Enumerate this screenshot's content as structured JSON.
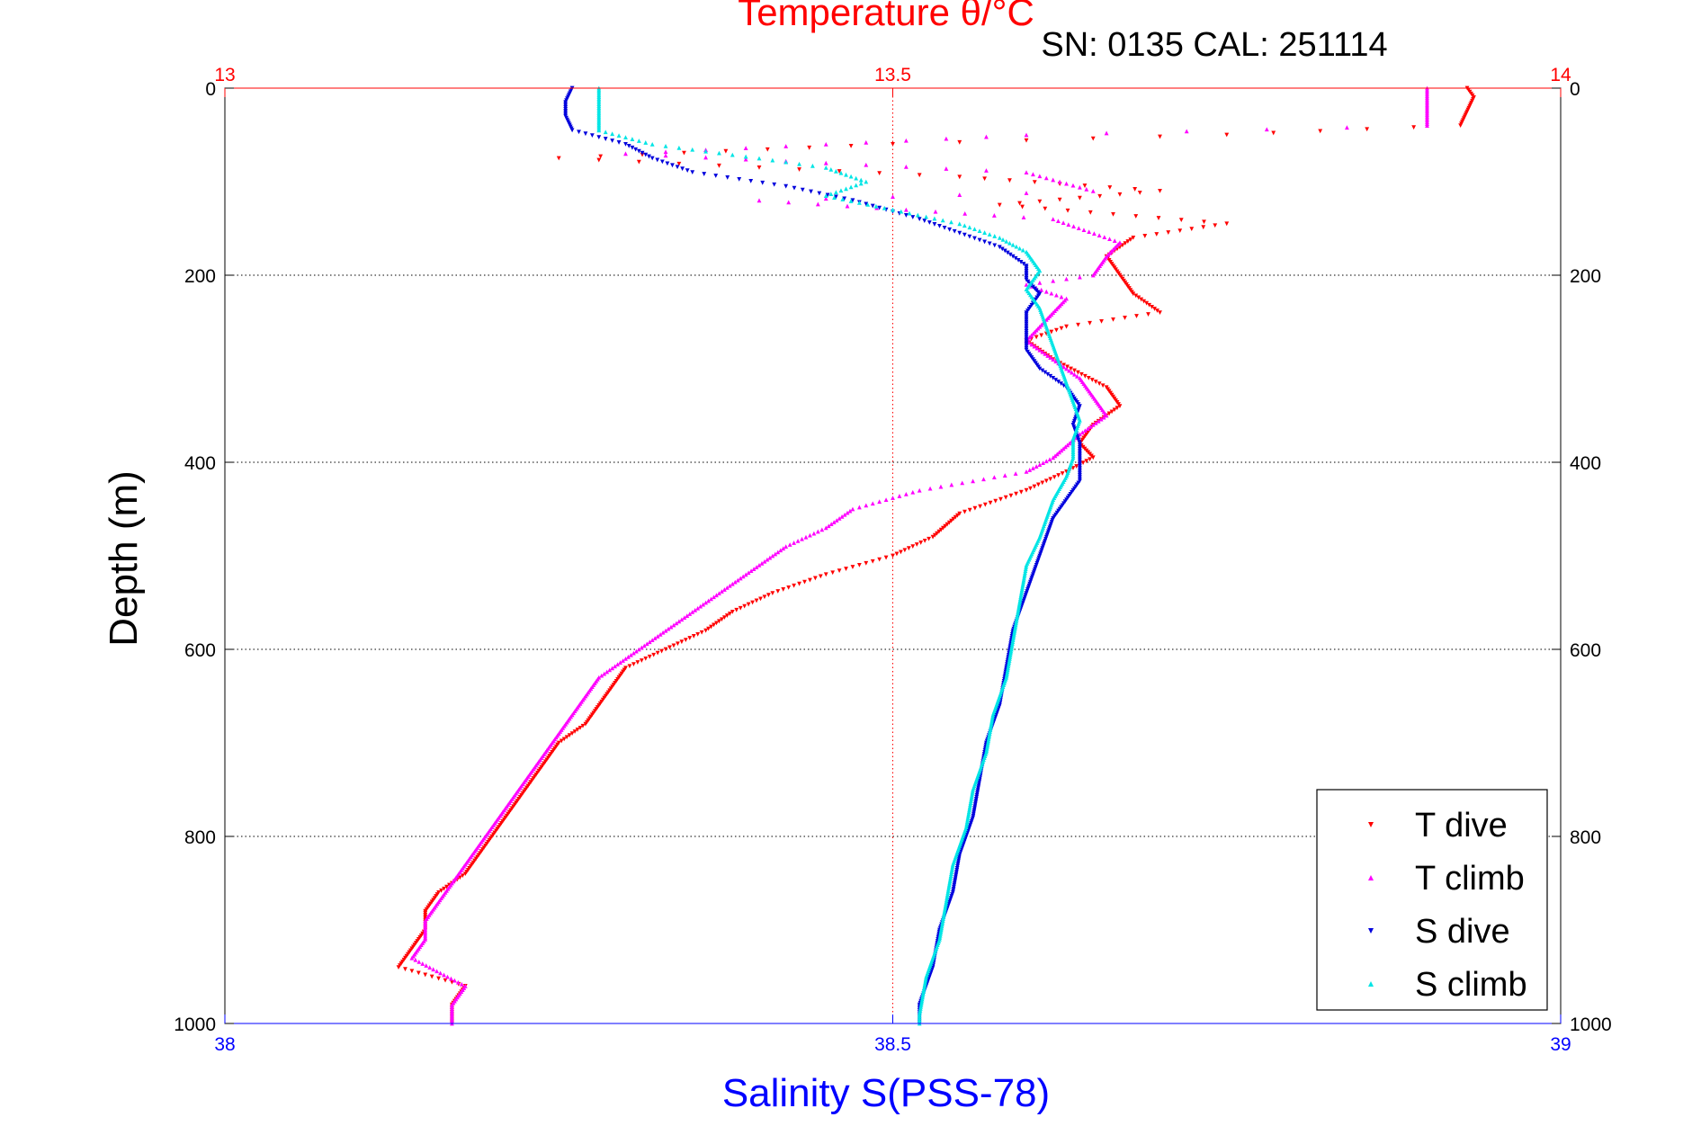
{
  "chart_data": {
    "type": "scatter",
    "title": "Temperature θ/°C",
    "annotation": "SN: 0135  CAL: 251114",
    "xlabel_bottom": "Salinity S(PSS-78)",
    "xlabel_top": "",
    "ylabel": "Depth (m)",
    "ylim": [
      0,
      1000
    ],
    "y_reversed": true,
    "y_ticks": [
      "0",
      "200",
      "400",
      "600",
      "800",
      "1000"
    ],
    "x_top": {
      "lim": [
        13,
        14
      ],
      "ticks": [
        "13",
        "13.5",
        "14"
      ],
      "color": "#ff0000"
    },
    "x_bottom": {
      "lim": [
        38,
        39
      ],
      "ticks": [
        "38",
        "38.5",
        "39"
      ],
      "color": "#0000ff"
    },
    "grid": true,
    "legend": {
      "placement": "bottom-right"
    },
    "series": [
      {
        "name": "T dive",
        "axis": "top",
        "color": "#ff0000",
        "marker": "triangle-down",
        "points": [
          [
            13.93,
            0
          ],
          [
            13.935,
            10
          ],
          [
            13.93,
            25
          ],
          [
            13.925,
            40
          ],
          [
            13.75,
            50
          ],
          [
            13.5,
            60
          ],
          [
            13.25,
            75
          ],
          [
            13.55,
            95
          ],
          [
            13.7,
            110
          ],
          [
            13.58,
            125
          ],
          [
            13.75,
            145
          ],
          [
            13.68,
            160
          ],
          [
            13.66,
            180
          ],
          [
            13.67,
            200
          ],
          [
            13.68,
            220
          ],
          [
            13.7,
            240
          ],
          [
            13.63,
            255
          ],
          [
            13.6,
            270
          ],
          [
            13.62,
            290
          ],
          [
            13.66,
            320
          ],
          [
            13.67,
            340
          ],
          [
            13.65,
            360
          ],
          [
            13.64,
            380
          ],
          [
            13.65,
            395
          ],
          [
            13.63,
            410
          ],
          [
            13.6,
            430
          ],
          [
            13.55,
            455
          ],
          [
            13.53,
            480
          ],
          [
            13.5,
            500
          ],
          [
            13.45,
            520
          ],
          [
            13.41,
            540
          ],
          [
            13.38,
            560
          ],
          [
            13.36,
            580
          ],
          [
            13.33,
            600
          ],
          [
            13.3,
            620
          ],
          [
            13.29,
            640
          ],
          [
            13.28,
            660
          ],
          [
            13.27,
            680
          ],
          [
            13.25,
            700
          ],
          [
            13.24,
            720
          ],
          [
            13.23,
            740
          ],
          [
            13.22,
            760
          ],
          [
            13.21,
            780
          ],
          [
            13.2,
            800
          ],
          [
            13.19,
            820
          ],
          [
            13.18,
            840
          ],
          [
            13.16,
            860
          ],
          [
            13.15,
            880
          ],
          [
            13.15,
            900
          ],
          [
            13.14,
            920
          ],
          [
            13.13,
            940
          ],
          [
            13.18,
            960
          ],
          [
            13.17,
            980
          ],
          [
            13.17,
            1000
          ]
        ]
      },
      {
        "name": "T climb",
        "axis": "top",
        "color": "#ff00ff",
        "marker": "triangle-up",
        "points": [
          [
            13.9,
            0
          ],
          [
            13.9,
            10
          ],
          [
            13.9,
            25
          ],
          [
            13.9,
            40
          ],
          [
            13.6,
            50
          ],
          [
            13.45,
            60
          ],
          [
            13.3,
            70
          ],
          [
            13.6,
            90
          ],
          [
            13.65,
            110
          ],
          [
            13.4,
            120
          ],
          [
            13.62,
            140
          ],
          [
            13.67,
            165
          ],
          [
            13.66,
            180
          ],
          [
            13.65,
            200
          ],
          [
            13.6,
            210
          ],
          [
            13.63,
            225
          ],
          [
            13.62,
            240
          ],
          [
            13.61,
            255
          ],
          [
            13.6,
            270
          ],
          [
            13.62,
            290
          ],
          [
            13.64,
            310
          ],
          [
            13.65,
            330
          ],
          [
            13.66,
            350
          ],
          [
            13.64,
            370
          ],
          [
            13.62,
            395
          ],
          [
            13.6,
            410
          ],
          [
            13.52,
            430
          ],
          [
            13.47,
            450
          ],
          [
            13.45,
            470
          ],
          [
            13.42,
            490
          ],
          [
            13.4,
            510
          ],
          [
            13.38,
            530
          ],
          [
            13.36,
            550
          ],
          [
            13.34,
            570
          ],
          [
            13.32,
            590
          ],
          [
            13.3,
            610
          ],
          [
            13.28,
            630
          ],
          [
            13.27,
            650
          ],
          [
            13.26,
            670
          ],
          [
            13.25,
            690
          ],
          [
            13.24,
            710
          ],
          [
            13.23,
            730
          ],
          [
            13.22,
            750
          ],
          [
            13.21,
            770
          ],
          [
            13.2,
            790
          ],
          [
            13.19,
            810
          ],
          [
            13.18,
            830
          ],
          [
            13.17,
            850
          ],
          [
            13.16,
            870
          ],
          [
            13.15,
            890
          ],
          [
            13.15,
            910
          ],
          [
            13.14,
            930
          ],
          [
            13.18,
            960
          ],
          [
            13.17,
            980
          ],
          [
            13.17,
            1000
          ]
        ]
      },
      {
        "name": "S dive",
        "axis": "bottom",
        "color": "#0000dd",
        "marker": "triangle-down",
        "points": [
          [
            38.26,
            0
          ],
          [
            38.255,
            15
          ],
          [
            38.255,
            30
          ],
          [
            38.26,
            45
          ],
          [
            38.3,
            60
          ],
          [
            38.32,
            75
          ],
          [
            38.35,
            90
          ],
          [
            38.42,
            105
          ],
          [
            38.47,
            120
          ],
          [
            38.52,
            140
          ],
          [
            38.55,
            155
          ],
          [
            38.58,
            170
          ],
          [
            38.6,
            190
          ],
          [
            38.6,
            205
          ],
          [
            38.61,
            220
          ],
          [
            38.6,
            240
          ],
          [
            38.6,
            260
          ],
          [
            38.6,
            280
          ],
          [
            38.61,
            300
          ],
          [
            38.63,
            320
          ],
          [
            38.64,
            340
          ],
          [
            38.635,
            360
          ],
          [
            38.64,
            380
          ],
          [
            38.64,
            400
          ],
          [
            38.64,
            420
          ],
          [
            38.63,
            440
          ],
          [
            38.62,
            460
          ],
          [
            38.615,
            480
          ],
          [
            38.61,
            500
          ],
          [
            38.6,
            540
          ],
          [
            38.59,
            580
          ],
          [
            38.585,
            620
          ],
          [
            38.58,
            660
          ],
          [
            38.57,
            700
          ],
          [
            38.565,
            740
          ],
          [
            38.56,
            780
          ],
          [
            38.55,
            820
          ],
          [
            38.545,
            860
          ],
          [
            38.535,
            900
          ],
          [
            38.53,
            940
          ],
          [
            38.52,
            980
          ],
          [
            38.52,
            1000
          ]
        ]
      },
      {
        "name": "S climb",
        "axis": "bottom",
        "color": "#00e5e5",
        "marker": "triangle-up",
        "points": [
          [
            38.28,
            0
          ],
          [
            38.28,
            15
          ],
          [
            38.28,
            30
          ],
          [
            38.28,
            45
          ],
          [
            38.32,
            60
          ],
          [
            38.4,
            75
          ],
          [
            38.45,
            85
          ],
          [
            38.48,
            100
          ],
          [
            38.45,
            115
          ],
          [
            38.5,
            130
          ],
          [
            38.55,
            145
          ],
          [
            38.58,
            160
          ],
          [
            38.6,
            175
          ],
          [
            38.61,
            195
          ],
          [
            38.6,
            215
          ],
          [
            38.61,
            235
          ],
          [
            38.615,
            255
          ],
          [
            38.62,
            275
          ],
          [
            38.625,
            295
          ],
          [
            38.63,
            315
          ],
          [
            38.635,
            335
          ],
          [
            38.64,
            355
          ],
          [
            38.635,
            375
          ],
          [
            38.635,
            395
          ],
          [
            38.63,
            415
          ],
          [
            38.62,
            440
          ],
          [
            38.615,
            460
          ],
          [
            38.61,
            480
          ],
          [
            38.6,
            510
          ],
          [
            38.595,
            550
          ],
          [
            38.59,
            590
          ],
          [
            38.585,
            630
          ],
          [
            38.575,
            670
          ],
          [
            38.57,
            710
          ],
          [
            38.56,
            750
          ],
          [
            38.555,
            790
          ],
          [
            38.545,
            830
          ],
          [
            38.54,
            870
          ],
          [
            38.535,
            910
          ],
          [
            38.525,
            950
          ],
          [
            38.52,
            990
          ],
          [
            38.52,
            1000
          ]
        ]
      }
    ]
  }
}
